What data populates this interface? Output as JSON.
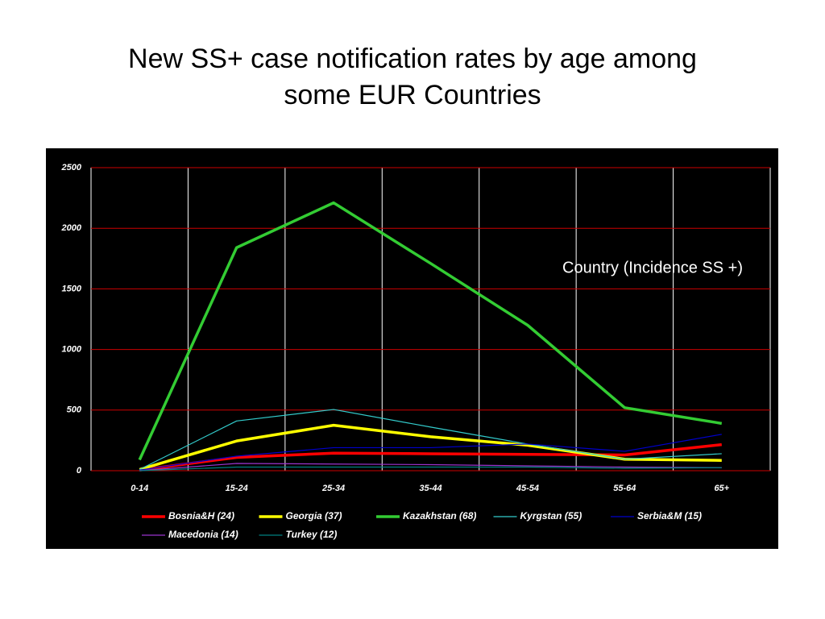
{
  "chart_data": {
    "type": "line",
    "title": "New SS+ case notification rates by age among some EUR Countries",
    "annotation": "Country (Incidence SS +)",
    "categories": [
      "0-14",
      "15-24",
      "25-34",
      "35-44",
      "45-54",
      "55-64",
      "65+"
    ],
    "ylim": [
      0,
      2500
    ],
    "yticks": [
      0,
      500,
      1000,
      1500,
      2000,
      2500
    ],
    "grid": true,
    "series": [
      {
        "name": "Bosnia&H (24)",
        "color": "#ff0000",
        "values": [
          5,
          110,
          145,
          140,
          135,
          130,
          215
        ]
      },
      {
        "name": "Georgia (37)",
        "color": "#ffff00",
        "values": [
          10,
          245,
          375,
          280,
          210,
          95,
          85
        ]
      },
      {
        "name": "Kazakhstan (68)",
        "color": "#33cc33",
        "values": [
          90,
          1840,
          2210,
          1710,
          1200,
          520,
          390
        ]
      },
      {
        "name": "Kyrgstan (55)",
        "color": "#33cccc",
        "values": [
          10,
          410,
          505,
          360,
          220,
          95,
          140
        ]
      },
      {
        "name": "Serbia&M (15)",
        "color": "#0000cc",
        "values": [
          5,
          120,
          190,
          190,
          220,
          160,
          300
        ]
      },
      {
        "name": "Macedonia (14)",
        "color": "#9933cc",
        "values": [
          0,
          60,
          55,
          50,
          40,
          30,
          25
        ]
      },
      {
        "name": "Turkey (12)",
        "color": "#008080",
        "values": [
          0,
          30,
          30,
          30,
          30,
          20,
          25
        ]
      }
    ]
  }
}
